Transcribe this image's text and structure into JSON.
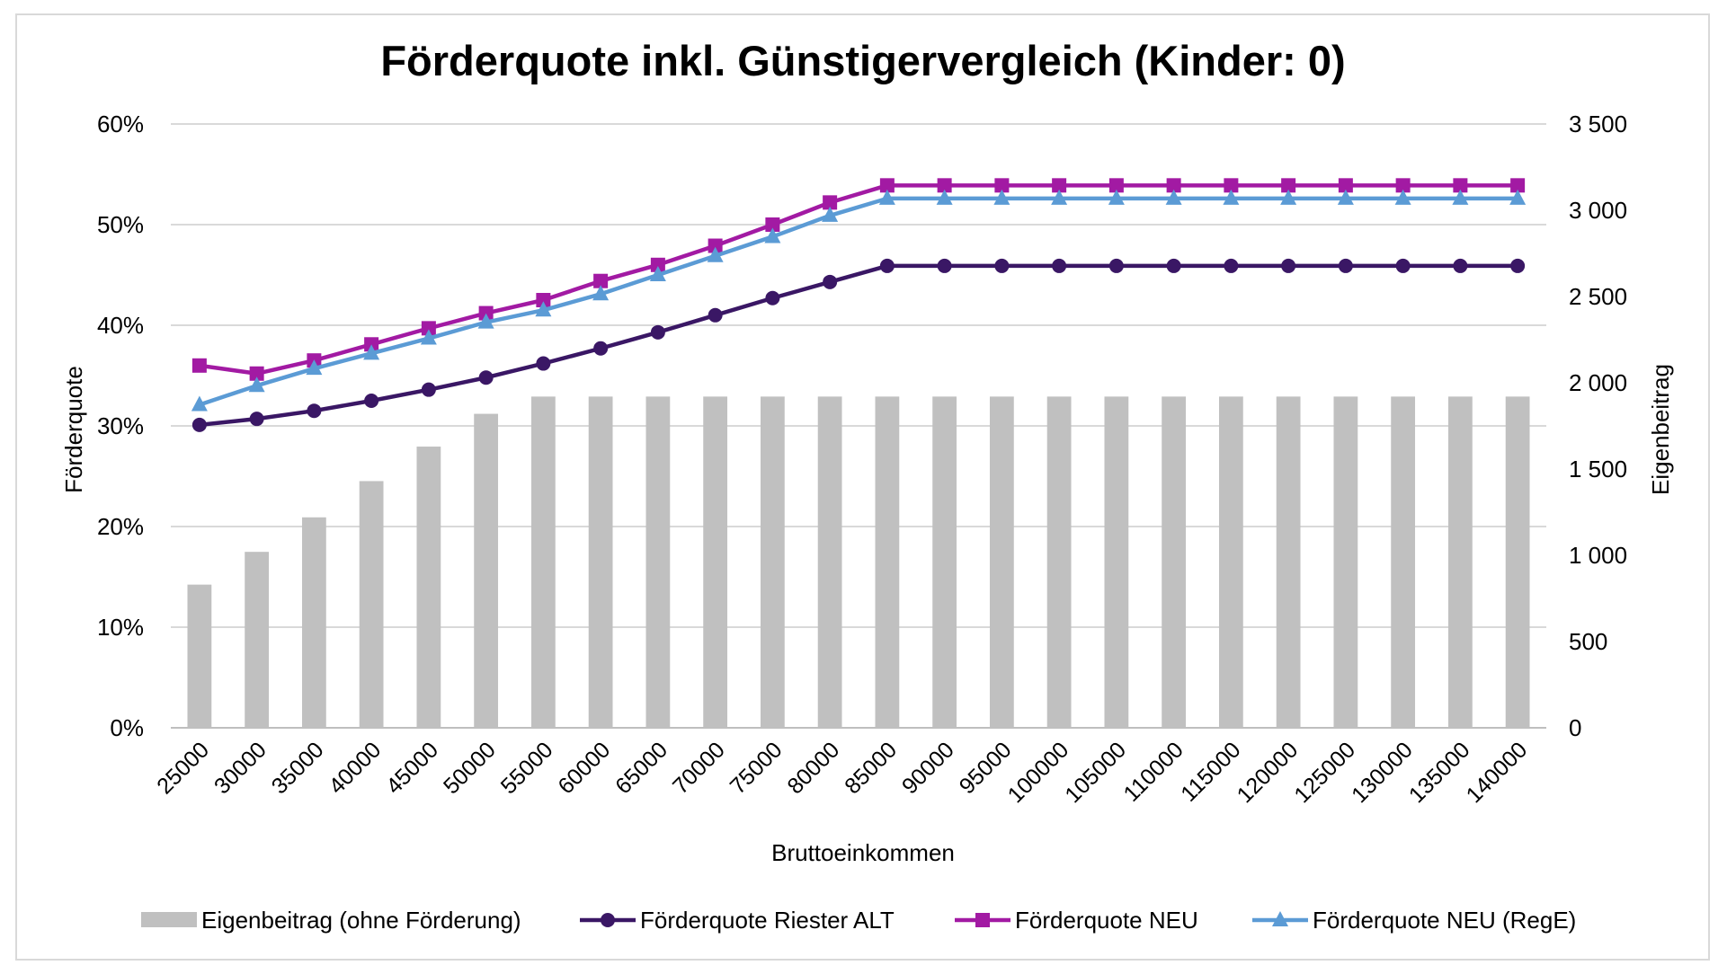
{
  "chart_data": {
    "type": "bar+line",
    "title": "Förderquote inkl. Günstigervergleich (Kinder: 0)",
    "xlabel": "Bruttoeinkommen",
    "ylabel": "Förderquote",
    "y2label": "Eigenbeitrag",
    "ylim": [
      0,
      0.6
    ],
    "y2lim": [
      0,
      3500
    ],
    "yticks": [
      "0%",
      "10%",
      "20%",
      "30%",
      "40%",
      "50%",
      "60%"
    ],
    "y2ticks": [
      "0",
      "500",
      "1 000",
      "1 500",
      "2 000",
      "2 500",
      "3 000",
      "3 500"
    ],
    "categories": [
      "25000",
      "30000",
      "35000",
      "40000",
      "45000",
      "50000",
      "55000",
      "60000",
      "65000",
      "70000",
      "75000",
      "80000",
      "85000",
      "90000",
      "95000",
      "100000",
      "105000",
      "110000",
      "115000",
      "120000",
      "125000",
      "130000",
      "135000",
      "140000"
    ],
    "legend_position": "bottom",
    "bar_series": {
      "name": "Eigenbeitrag (ohne Förderung)",
      "axis": "right",
      "color": "#c0c0c0",
      "values": [
        830,
        1020,
        1220,
        1430,
        1630,
        1820,
        1920,
        1920,
        1920,
        1920,
        1920,
        1920,
        1920,
        1920,
        1920,
        1920,
        1920,
        1920,
        1920,
        1920,
        1920,
        1920,
        1920,
        1920
      ]
    },
    "series": [
      {
        "name": "Förderquote Riester ALT",
        "axis": "left",
        "marker": "circle",
        "color": "#3a1765",
        "values": [
          0.301,
          0.307,
          0.315,
          0.325,
          0.336,
          0.348,
          0.362,
          0.377,
          0.393,
          0.41,
          0.427,
          0.443,
          0.459,
          0.459,
          0.459,
          0.459,
          0.459,
          0.459,
          0.459,
          0.459,
          0.459,
          0.459,
          0.459,
          0.459
        ]
      },
      {
        "name": "Förderquote NEU",
        "axis": "left",
        "marker": "square",
        "color": "#a21aa3",
        "values": [
          0.36,
          0.352,
          0.365,
          0.381,
          0.397,
          0.412,
          0.425,
          0.444,
          0.46,
          0.479,
          0.5,
          0.522,
          0.539,
          0.539,
          0.539,
          0.539,
          0.539,
          0.539,
          0.539,
          0.539,
          0.539,
          0.539,
          0.539,
          0.539
        ]
      },
      {
        "name": "Förderquote NEU (RegE)",
        "axis": "left",
        "marker": "triangle",
        "color": "#5b9bd5",
        "values": [
          0.321,
          0.34,
          0.357,
          0.372,
          0.387,
          0.403,
          0.415,
          0.431,
          0.45,
          0.469,
          0.488,
          0.509,
          0.526,
          0.526,
          0.526,
          0.526,
          0.526,
          0.526,
          0.526,
          0.526,
          0.526,
          0.526,
          0.526,
          0.526
        ]
      }
    ]
  }
}
